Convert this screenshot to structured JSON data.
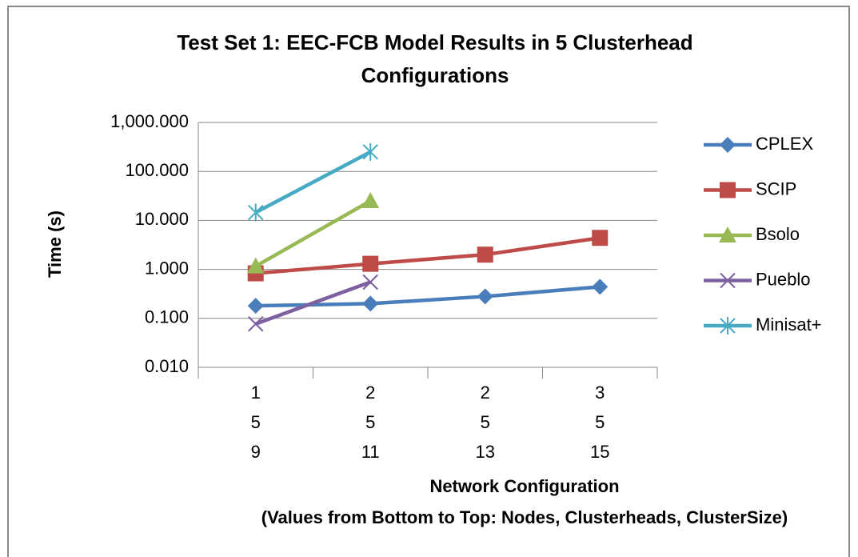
{
  "chart_data": {
    "type": "line",
    "title": [
      "Test Set 1: EEC-FCB Model Results in 5 Clusterhead",
      "Configurations"
    ],
    "y_label": "Time (s)",
    "x_label": [
      "Network Configuration",
      "(Values from Bottom to Top: Nodes, Clusterheads, ClusterSize)"
    ],
    "categories": [
      [
        "1",
        "5",
        "9"
      ],
      [
        "2",
        "5",
        "11"
      ],
      [
        "2",
        "5",
        "13"
      ],
      [
        "3",
        "5",
        "15"
      ]
    ],
    "series": [
      {
        "name": "CPLEX",
        "color": "#4a7ebb",
        "marker": "diamond",
        "values": [
          0.18,
          0.2,
          0.28,
          0.44
        ]
      },
      {
        "name": "SCIP",
        "color": "#be4b48",
        "marker": "square",
        "values": [
          0.83,
          1.3,
          2.0,
          4.4
        ]
      },
      {
        "name": "Bsolo",
        "color": "#98b954",
        "marker": "triangle",
        "values": [
          1.16,
          25,
          null,
          null
        ]
      },
      {
        "name": "Pueblo",
        "color": "#7d60a0",
        "marker": "x",
        "values": [
          0.077,
          0.55,
          null,
          null
        ]
      },
      {
        "name": "Minisat+",
        "color": "#46aac5",
        "marker": "star",
        "values": [
          14.5,
          250,
          null,
          null
        ]
      }
    ],
    "ylim": [
      0.01,
      1000
    ],
    "yscale": "log",
    "yticks": [
      {
        "value": 0.01,
        "label": "0.010"
      },
      {
        "value": 0.1,
        "label": "0.100"
      },
      {
        "value": 1,
        "label": "1.000"
      },
      {
        "value": 10,
        "label": "10.000"
      },
      {
        "value": 100,
        "label": "100.000"
      },
      {
        "value": 1000,
        "label": "1,000.000"
      }
    ],
    "grid": true,
    "legend": "right"
  }
}
